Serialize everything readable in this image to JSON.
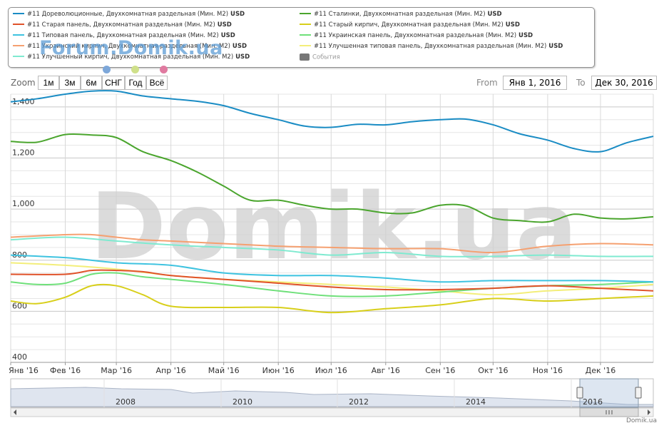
{
  "legend": [
    {
      "prefix": "#11 ",
      "label": "Дореволюционные, Двухкомнатная раздельная (Мин. М2)",
      "unit": " USD",
      "color": "#1a8cc4"
    },
    {
      "prefix": "#11 ",
      "label": "Сталинки, Двухкомнатная раздельная (Мин. М2)",
      "unit": " USD",
      "color": "#4aa52d"
    },
    {
      "prefix": "#11 ",
      "label": "Старая панель, Двухкомнатная раздельная (Мин. М2)",
      "unit": " USD",
      "color": "#e0522a"
    },
    {
      "prefix": "#11 ",
      "label": "Старый кирпич, Двухкомнатная раздельная (Мин. М2)",
      "unit": " USD",
      "color": "#d8cf1a"
    },
    {
      "prefix": "#11 ",
      "label": "Типовая панель, Двухкомнатная раздельная (Мин. М2)",
      "unit": " USD",
      "color": "#3ec3e0"
    },
    {
      "prefix": "#11 ",
      "label": "Украинская панель, Двухкомнатная раздельная (Мин. М2)",
      "unit": " USD",
      "color": "#6fe07a"
    },
    {
      "prefix": "#11 ",
      "label": "Украинский кирпич, Двухкомнатная раздельная (Мин. М2)",
      "unit": " USD",
      "color": "#f5a070"
    },
    {
      "prefix": "#11 ",
      "label": "Улучшенная типовая панель, Двухкомнатная раздельная (Мин. М2)",
      "unit": " USD",
      "color": "#f3ee7a"
    },
    {
      "prefix": "#11 ",
      "label": "Улучшенный кирпич, Двухкомнатная раздельная (Мин. М2)",
      "unit": " USD",
      "color": "#7fead0"
    },
    {
      "prefix": "",
      "label": "События",
      "unit": "",
      "color": "#777777",
      "box": true,
      "muted": true
    }
  ],
  "watermark": {
    "forum": "Forum.Domik.ua",
    "main": "Domik.ua",
    "dot_colors": [
      "#7da7d9",
      "#cfe08a",
      "#e07aa0"
    ]
  },
  "zoom": {
    "label": "Zoom",
    "buttons": [
      "1м",
      "3м",
      "6м",
      "СНГ",
      "Год",
      "Всё"
    ]
  },
  "range": {
    "from_label": "From",
    "from_value": "Янв 1, 2016",
    "to_label": "To",
    "to_value": "Дек 30, 2016"
  },
  "credit": "Domik.ua",
  "navigator": {
    "years": [
      "2008",
      "2010",
      "2012",
      "2014",
      "2016"
    ]
  },
  "chart_data": {
    "type": "line",
    "ylim": [
      400,
      1450
    ],
    "yticks": [
      400,
      600,
      800,
      1000,
      1200,
      1400
    ],
    "xlim": [
      "2016-01-01",
      "2016-12-31"
    ],
    "xticks": [
      {
        "date": "2016-01-01",
        "label": "Янв '16"
      },
      {
        "date": "2016-02-01",
        "label": "Фев '16"
      },
      {
        "date": "2016-03-01",
        "label": "Мар '16"
      },
      {
        "date": "2016-04-01",
        "label": "Апр '16"
      },
      {
        "date": "2016-05-01",
        "label": "Май '16"
      },
      {
        "date": "2016-06-01",
        "label": "Июн '16"
      },
      {
        "date": "2016-07-01",
        "label": "Июл '16"
      },
      {
        "date": "2016-08-01",
        "label": "Авг '16"
      },
      {
        "date": "2016-09-01",
        "label": "Сен '16"
      },
      {
        "date": "2016-10-01",
        "label": "Окт '16"
      },
      {
        "date": "2016-11-01",
        "label": "Ноя '16"
      },
      {
        "date": "2016-12-01",
        "label": "Дек '16"
      }
    ],
    "grid": true,
    "series": [
      {
        "name": "#11 Дореволюционные, Двухкомнатная раздельная (Мин. М2) USD",
        "color": "#1a8cc4",
        "x": [
          "2016-01-01",
          "2016-01-16",
          "2016-02-01",
          "2016-02-16",
          "2016-03-01",
          "2016-03-16",
          "2016-04-01",
          "2016-04-16",
          "2016-05-01",
          "2016-05-16",
          "2016-06-01",
          "2016-06-16",
          "2016-07-01",
          "2016-07-16",
          "2016-08-01",
          "2016-08-16",
          "2016-09-01",
          "2016-09-16",
          "2016-10-01",
          "2016-10-16",
          "2016-11-01",
          "2016-11-16",
          "2016-12-01",
          "2016-12-16",
          "2016-12-31"
        ],
        "y": [
          1420,
          1432,
          1450,
          1462,
          1462,
          1443,
          1432,
          1422,
          1405,
          1375,
          1350,
          1325,
          1320,
          1332,
          1330,
          1342,
          1350,
          1352,
          1330,
          1295,
          1270,
          1237,
          1225,
          1260,
          1285
        ]
      },
      {
        "name": "#11 Сталинки, Двухкомнатная раздельная (Мин. М2) USD",
        "color": "#4aa52d",
        "x": [
          "2016-01-01",
          "2016-01-16",
          "2016-02-01",
          "2016-02-16",
          "2016-03-01",
          "2016-03-16",
          "2016-04-01",
          "2016-04-16",
          "2016-05-01",
          "2016-05-16",
          "2016-06-01",
          "2016-06-16",
          "2016-07-01",
          "2016-07-16",
          "2016-08-01",
          "2016-08-16",
          "2016-09-01",
          "2016-09-16",
          "2016-10-01",
          "2016-10-16",
          "2016-11-01",
          "2016-11-16",
          "2016-12-01",
          "2016-12-16",
          "2016-12-31"
        ],
        "y": [
          1265,
          1262,
          1292,
          1290,
          1280,
          1225,
          1190,
          1145,
          1090,
          1035,
          1035,
          1015,
          1000,
          1000,
          985,
          985,
          1015,
          1012,
          965,
          955,
          950,
          980,
          965,
          962,
          970
        ]
      },
      {
        "name": "#11 Старая панель, Двухкомнатная раздельная (Мин. М2) USD",
        "color": "#e0522a",
        "x": [
          "2016-01-01",
          "2016-02-01",
          "2016-02-16",
          "2016-03-01",
          "2016-03-16",
          "2016-04-01",
          "2016-05-01",
          "2016-06-01",
          "2016-07-01",
          "2016-08-01",
          "2016-09-01",
          "2016-10-01",
          "2016-11-01",
          "2016-12-01",
          "2016-12-31"
        ],
        "y": [
          745,
          745,
          760,
          760,
          755,
          740,
          725,
          710,
          695,
          685,
          685,
          690,
          700,
          690,
          680
        ]
      },
      {
        "name": "#11 Старый кирпич, Двухкомнатная раздельная (Мин. М2) USD",
        "color": "#d8cf1a",
        "x": [
          "2016-01-01",
          "2016-01-16",
          "2016-02-01",
          "2016-02-16",
          "2016-03-01",
          "2016-03-16",
          "2016-04-01",
          "2016-05-01",
          "2016-06-01",
          "2016-07-01",
          "2016-08-01",
          "2016-09-01",
          "2016-10-01",
          "2016-11-01",
          "2016-12-01",
          "2016-12-31"
        ],
        "y": [
          640,
          630,
          655,
          700,
          700,
          665,
          620,
          615,
          615,
          595,
          610,
          625,
          650,
          640,
          650,
          660
        ]
      },
      {
        "name": "#11 Типовая панель, Двухкомнатная раздельная (Мин. М2) USD",
        "color": "#3ec3e0",
        "x": [
          "2016-01-01",
          "2016-02-01",
          "2016-03-01",
          "2016-04-01",
          "2016-05-01",
          "2016-06-01",
          "2016-07-01",
          "2016-08-01",
          "2016-09-01",
          "2016-10-01",
          "2016-11-01",
          "2016-12-01",
          "2016-12-31"
        ],
        "y": [
          820,
          810,
          790,
          780,
          750,
          740,
          740,
          730,
          715,
          720,
          720,
          720,
          715
        ]
      },
      {
        "name": "#11 Украинская панель, Двухкомнатная раздельная (Мин. М2) USD",
        "color": "#6fe07a",
        "x": [
          "2016-01-01",
          "2016-01-16",
          "2016-02-01",
          "2016-02-16",
          "2016-03-01",
          "2016-03-16",
          "2016-04-01",
          "2016-05-01",
          "2016-06-01",
          "2016-07-01",
          "2016-08-01",
          "2016-09-01",
          "2016-10-01",
          "2016-11-01",
          "2016-12-01",
          "2016-12-31"
        ],
        "y": [
          715,
          705,
          710,
          745,
          750,
          735,
          725,
          705,
          680,
          660,
          660,
          675,
          690,
          700,
          705,
          715
        ]
      },
      {
        "name": "#11 Украинский кирпич, Двухкомнатная раздельная (Мин. М2) USD",
        "color": "#f5a070",
        "x": [
          "2016-01-01",
          "2016-02-01",
          "2016-02-16",
          "2016-03-01",
          "2016-03-16",
          "2016-04-01",
          "2016-05-01",
          "2016-06-01",
          "2016-07-01",
          "2016-08-01",
          "2016-09-01",
          "2016-10-01",
          "2016-11-01",
          "2016-12-01",
          "2016-12-31"
        ],
        "y": [
          890,
          900,
          900,
          890,
          880,
          875,
          865,
          855,
          850,
          845,
          845,
          830,
          855,
          865,
          860
        ]
      },
      {
        "name": "#11 Улучшенная типовая панель, Двухкомнатная раздельная (Мин. М2) USD",
        "color": "#f3ee7a",
        "x": [
          "2016-01-01",
          "2016-02-01",
          "2016-03-01",
          "2016-04-01",
          "2016-05-01",
          "2016-06-01",
          "2016-07-01",
          "2016-08-01",
          "2016-09-01",
          "2016-10-01",
          "2016-11-01",
          "2016-12-01",
          "2016-12-31"
        ],
        "y": [
          790,
          780,
          765,
          740,
          725,
          715,
          705,
          695,
          680,
          665,
          680,
          690,
          705
        ]
      },
      {
        "name": "#11 Улучшенный кирпич, Двухкомнатная раздельная (Мин. М2) USD",
        "color": "#7fead0",
        "x": [
          "2016-01-01",
          "2016-02-01",
          "2016-03-01",
          "2016-04-01",
          "2016-05-01",
          "2016-06-01",
          "2016-07-01",
          "2016-08-01",
          "2016-09-01",
          "2016-10-01",
          "2016-11-01",
          "2016-12-01",
          "2016-12-31"
        ],
        "y": [
          880,
          890,
          875,
          860,
          850,
          840,
          820,
          830,
          815,
          815,
          820,
          815,
          815
        ]
      }
    ]
  }
}
